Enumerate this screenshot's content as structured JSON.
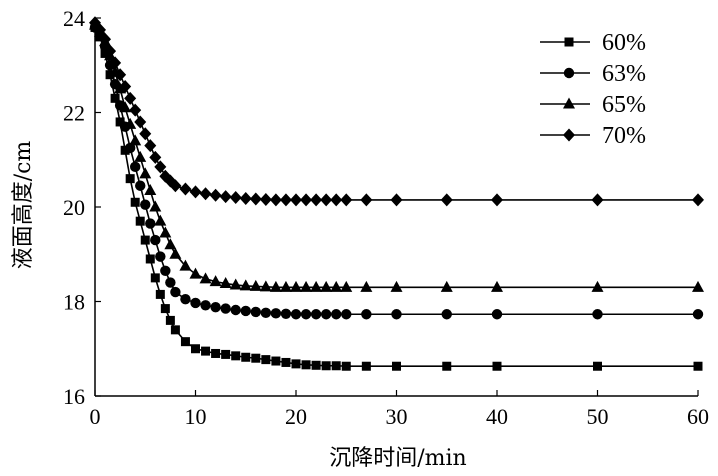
{
  "chart_data": {
    "type": "line",
    "title": "",
    "xlabel": "沉降时间/min",
    "ylabel": "液面高度/cm",
    "xlim": [
      0,
      60
    ],
    "ylim": [
      16,
      24
    ],
    "xticks": [
      0,
      10,
      20,
      30,
      40,
      50,
      60
    ],
    "yticks": [
      16,
      18,
      20,
      22,
      24
    ],
    "grid": false,
    "legend_position": "top-right",
    "x": [
      0,
      0.5,
      1,
      1.5,
      2,
      2.5,
      3,
      3.5,
      4,
      4.5,
      5,
      5.5,
      6,
      6.5,
      7,
      7.5,
      8,
      9,
      10,
      11,
      12,
      13,
      14,
      15,
      16,
      17,
      18,
      19,
      20,
      21,
      22,
      23,
      24,
      25,
      27,
      30,
      35,
      40,
      50,
      60
    ],
    "series": [
      {
        "name": "60%",
        "marker": "square",
        "values": [
          23.8,
          23.6,
          23.25,
          22.8,
          22.3,
          21.8,
          21.2,
          20.6,
          20.1,
          19.7,
          19.3,
          18.9,
          18.5,
          18.15,
          17.85,
          17.6,
          17.4,
          17.15,
          17.0,
          16.95,
          16.9,
          16.88,
          16.85,
          16.82,
          16.8,
          16.77,
          16.74,
          16.71,
          16.68,
          16.66,
          16.65,
          16.64,
          16.64,
          16.63,
          16.63,
          16.63,
          16.63,
          16.63,
          16.63,
          16.63
        ]
      },
      {
        "name": "63%",
        "marker": "circle",
        "values": [
          23.8,
          23.65,
          23.4,
          23.0,
          22.6,
          22.15,
          21.7,
          21.25,
          20.85,
          20.45,
          20.05,
          19.65,
          19.3,
          18.95,
          18.65,
          18.4,
          18.2,
          18.05,
          17.97,
          17.92,
          17.88,
          17.85,
          17.82,
          17.8,
          17.78,
          17.76,
          17.75,
          17.74,
          17.73,
          17.73,
          17.73,
          17.73,
          17.73,
          17.73,
          17.73,
          17.73,
          17.73,
          17.73,
          17.73,
          17.73
        ]
      },
      {
        "name": "65%",
        "marker": "triangle",
        "values": [
          23.85,
          23.7,
          23.5,
          23.2,
          22.85,
          22.5,
          22.1,
          21.75,
          21.4,
          21.05,
          20.7,
          20.35,
          20.0,
          19.7,
          19.45,
          19.2,
          19.0,
          18.75,
          18.58,
          18.48,
          18.42,
          18.38,
          18.35,
          18.33,
          18.32,
          18.31,
          18.3,
          18.3,
          18.3,
          18.3,
          18.3,
          18.3,
          18.3,
          18.3,
          18.3,
          18.3,
          18.3,
          18.3,
          18.3,
          18.3
        ]
      },
      {
        "name": "70%",
        "marker": "diamond",
        "values": [
          23.9,
          23.75,
          23.55,
          23.3,
          23.05,
          22.8,
          22.55,
          22.3,
          22.05,
          21.8,
          21.55,
          21.3,
          21.05,
          20.85,
          20.65,
          20.55,
          20.45,
          20.38,
          20.32,
          20.28,
          20.25,
          20.22,
          20.2,
          20.18,
          20.17,
          20.16,
          20.15,
          20.15,
          20.15,
          20.15,
          20.15,
          20.15,
          20.15,
          20.15,
          20.15,
          20.15,
          20.15,
          20.15,
          20.15,
          20.15
        ]
      }
    ]
  }
}
